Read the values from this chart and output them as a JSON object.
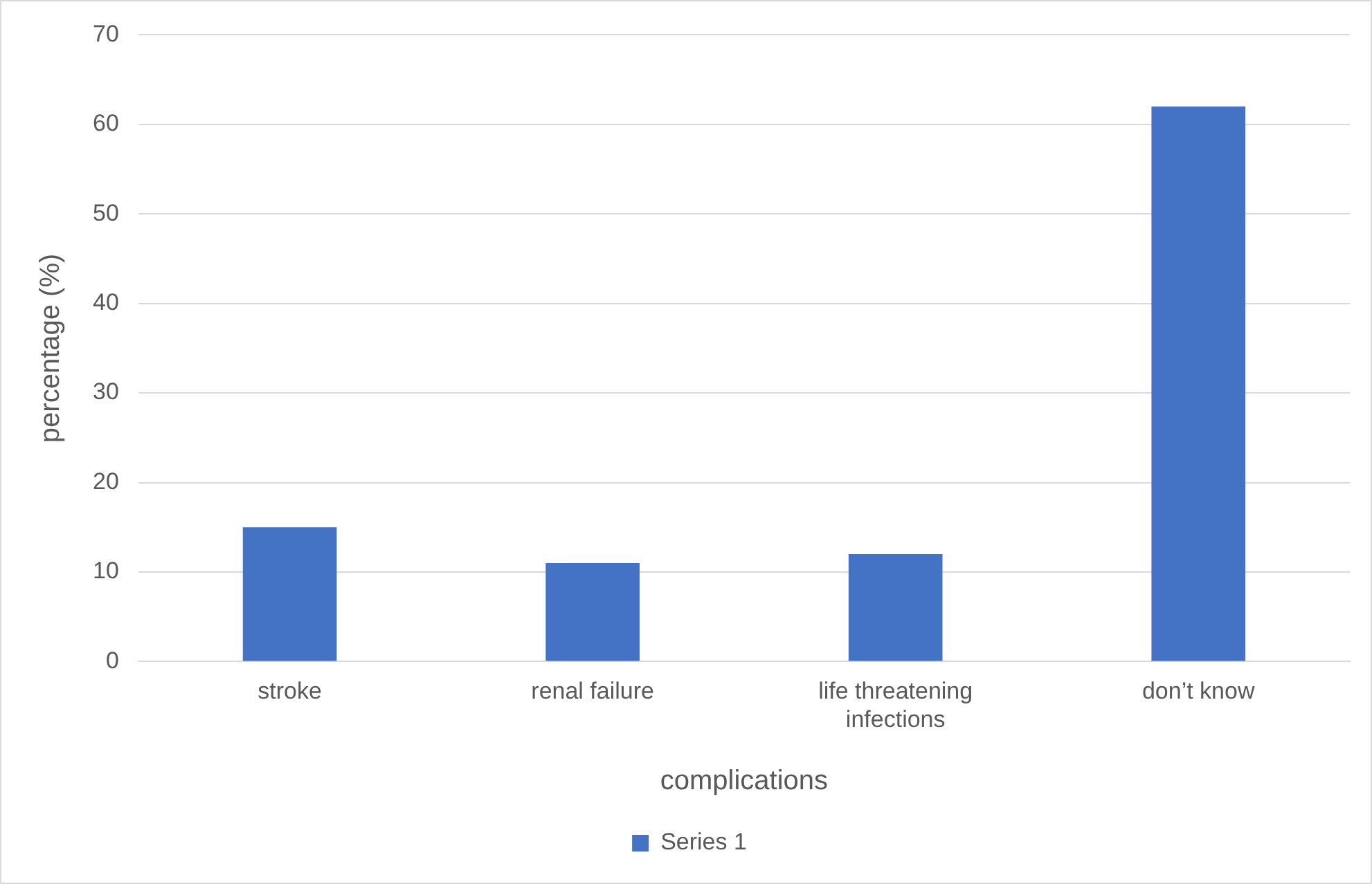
{
  "chart_data": {
    "type": "bar",
    "xlabel": "complications",
    "ylabel": "percentage (%)",
    "categories": [
      "stroke",
      "renal failure",
      "life threatening infections",
      "don’t know"
    ],
    "series": [
      {
        "name": "Series 1",
        "color": "#4472c4",
        "values": [
          15,
          11,
          12,
          62
        ]
      }
    ],
    "ylim": [
      0,
      70
    ],
    "yticks": [
      0,
      10,
      20,
      30,
      40,
      50,
      60,
      70
    ],
    "grid": "y",
    "legend": "bottom"
  }
}
